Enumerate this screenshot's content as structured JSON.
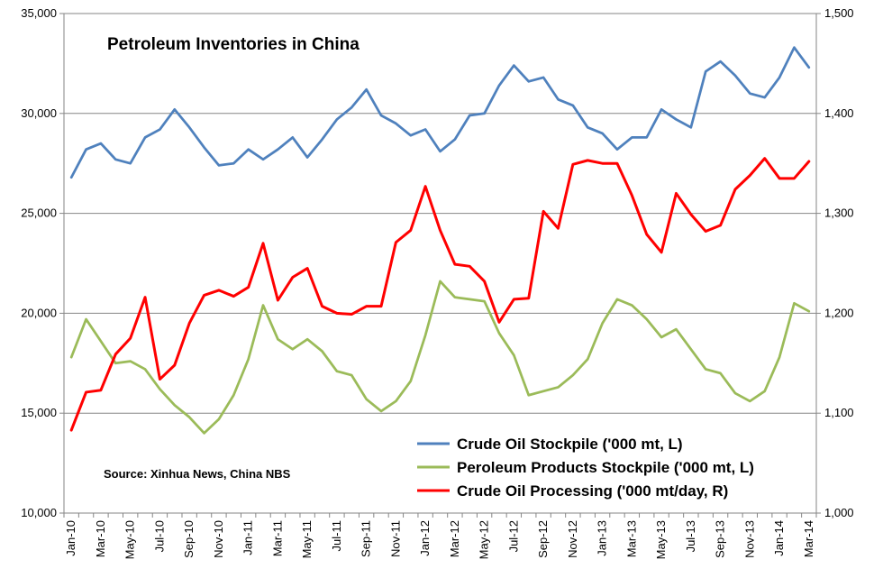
{
  "chart_data": {
    "type": "line",
    "title": "Petroleum Inventories in China",
    "source": "Source: Xinhua News, China NBS",
    "xlabel": "",
    "ylabel_left": "",
    "ylabel_right": "",
    "grid": true,
    "legend_position": "bottom-right",
    "ylim_left": [
      10000,
      35000
    ],
    "ylim_right": [
      1000,
      1500
    ],
    "yticks_left": [
      "10,000",
      "15,000",
      "20,000",
      "25,000",
      "30,000",
      "35,000"
    ],
    "yticks_right": [
      "1,000",
      "1,100",
      "1,200",
      "1,300",
      "1,400",
      "1,500"
    ],
    "x": [
      "Jan-10",
      "Feb-10",
      "Mar-10",
      "Apr-10",
      "May-10",
      "Jun-10",
      "Jul-10",
      "Aug-10",
      "Sep-10",
      "Oct-10",
      "Nov-10",
      "Dec-10",
      "Jan-11",
      "Feb-11",
      "Mar-11",
      "Apr-11",
      "May-11",
      "Jun-11",
      "Jul-11",
      "Aug-11",
      "Sep-11",
      "Oct-11",
      "Nov-11",
      "Dec-11",
      "Jan-12",
      "Feb-12",
      "Mar-12",
      "Apr-12",
      "May-12",
      "Jun-12",
      "Jul-12",
      "Aug-12",
      "Sep-12",
      "Oct-12",
      "Nov-12",
      "Dec-12",
      "Jan-13",
      "Feb-13",
      "Mar-13",
      "Apr-13",
      "May-13",
      "Jun-13",
      "Jul-13",
      "Aug-13",
      "Sep-13",
      "Oct-13",
      "Nov-13",
      "Dec-13",
      "Jan-14",
      "Feb-14",
      "Mar-14"
    ],
    "x_tick_labels": [
      "Jan-10",
      "Mar-10",
      "May-10",
      "Jul-10",
      "Sep-10",
      "Nov-10",
      "Jan-11",
      "Mar-11",
      "May-11",
      "Jul-11",
      "Sep-11",
      "Nov-11",
      "Jan-12",
      "Mar-12",
      "May-12",
      "Jul-12",
      "Sep-12",
      "Nov-12",
      "Jan-13",
      "Mar-13",
      "May-13",
      "Jul-13",
      "Sep-13",
      "Nov-13",
      "Jan-14",
      "Mar-14"
    ],
    "series": [
      {
        "name": "Crude Oil Stockpile ('000 mt, L)",
        "axis": "left",
        "color": "#4f81bd",
        "values": [
          26800,
          28200,
          28500,
          27700,
          27500,
          28800,
          29200,
          30200,
          29300,
          28300,
          27400,
          27500,
          28200,
          27700,
          28200,
          28800,
          27800,
          28700,
          29700,
          30300,
          31200,
          29900,
          29500,
          28900,
          29200,
          28100,
          28700,
          29900,
          30000,
          31400,
          32400,
          31600,
          31800,
          30700,
          30400,
          29300,
          29000,
          28200,
          28800,
          28800,
          30200,
          29700,
          29300,
          32100,
          32600,
          31900,
          31000,
          30800,
          31800,
          33300,
          32300
        ]
      },
      {
        "name": "Peroleum Products Stockpile  ('000 mt, L)",
        "axis": "left",
        "color": "#9bbb59",
        "values": [
          17800,
          19700,
          18600,
          17500,
          17600,
          17200,
          16200,
          15400,
          14800,
          14000,
          14700,
          15900,
          17700,
          20400,
          18700,
          18200,
          18700,
          18100,
          17100,
          16900,
          15700,
          15100,
          15600,
          16600,
          18900,
          21600,
          20800,
          20700,
          20600,
          19000,
          17900,
          15900,
          16100,
          16300,
          16900,
          17700,
          19500,
          20700,
          20400,
          19700,
          18800,
          19200,
          18200,
          17200,
          17000,
          16000,
          15600,
          16100,
          17800,
          20500,
          20100
        ]
      },
      {
        "name": "Crude Oil Processing ('000 mt/day, R)",
        "axis": "right",
        "color": "#ff0000",
        "values": [
          1083,
          1121,
          1123,
          1159,
          1175,
          1216,
          1134,
          1148,
          1190,
          1218,
          1223,
          1217,
          1226,
          1270,
          1213,
          1236,
          1245,
          1207,
          1200,
          1199,
          1207,
          1207,
          1271,
          1283,
          1327,
          1283,
          1249,
          1247,
          1232,
          1191,
          1214,
          1215,
          1302,
          1285,
          1349,
          1353,
          1350,
          1350,
          1318,
          1279,
          1261,
          1320,
          1299,
          1282,
          1288,
          1324,
          1338,
          1355,
          1335,
          1335,
          1352
        ]
      }
    ]
  }
}
